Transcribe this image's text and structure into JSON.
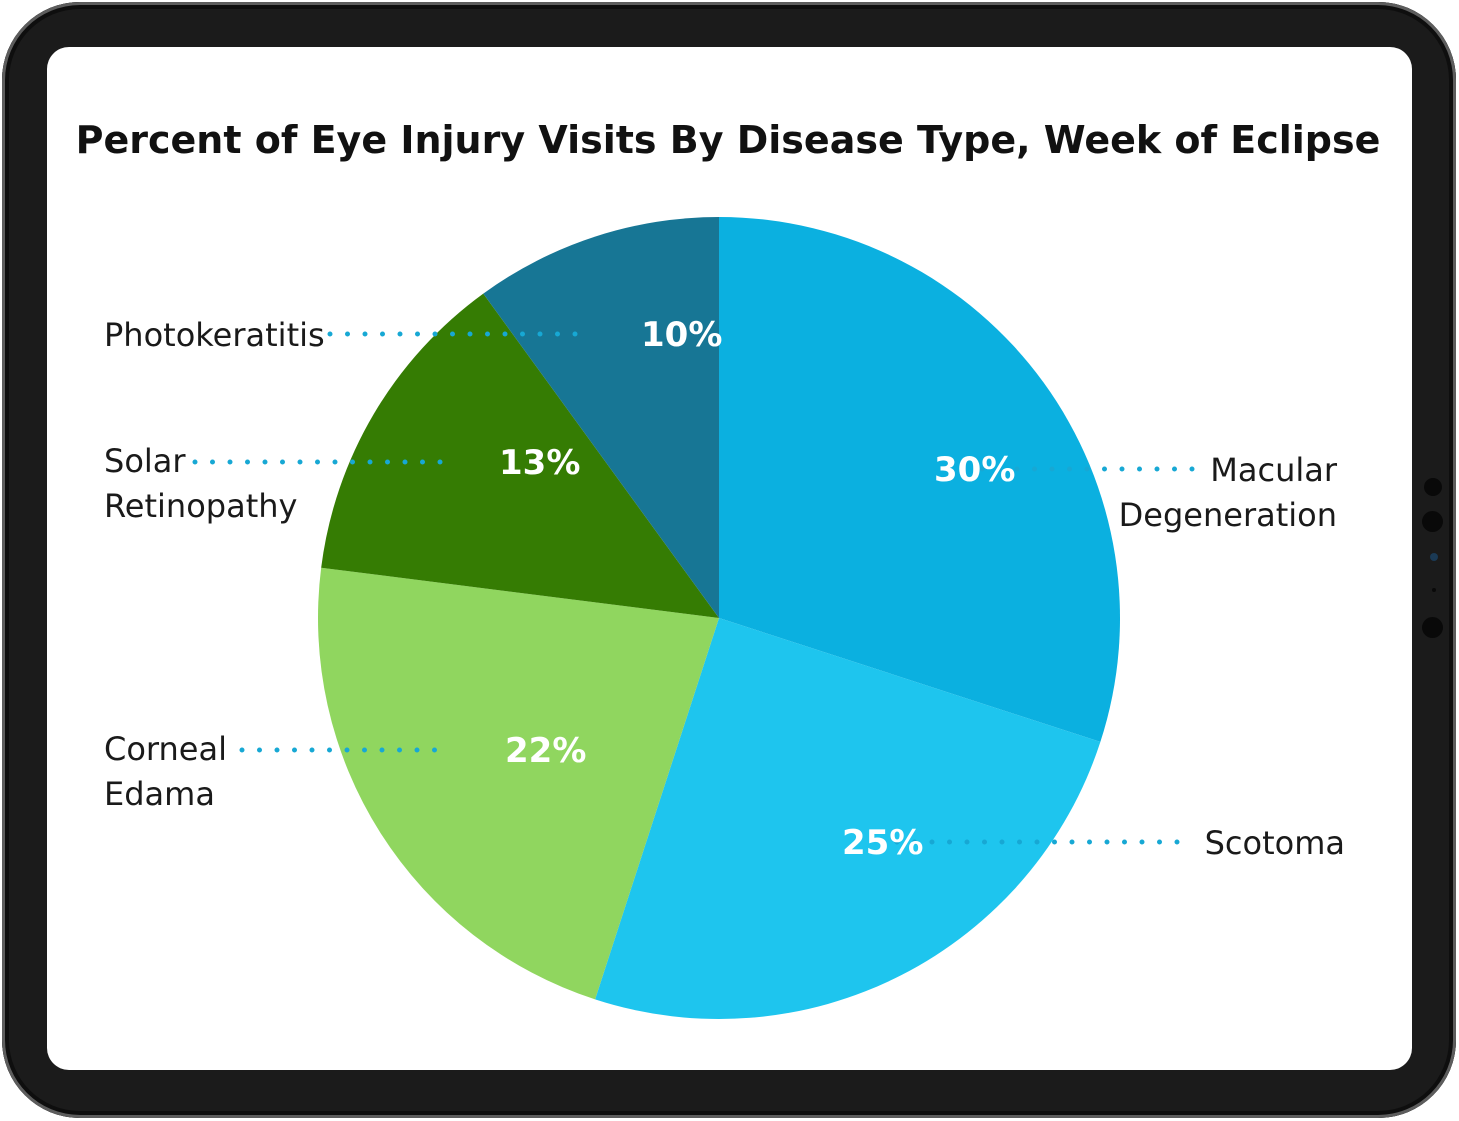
{
  "chart_data": {
    "type": "pie",
    "title": "Percent of Eye Injury Visits By Disease Type, Week of Eclipse",
    "unit": "%",
    "slices": [
      {
        "label": "Macular Degeneration",
        "lines": [
          "Macular",
          "Degeneration"
        ],
        "value": 30,
        "value_label": "30%",
        "color": "#0BB0E0"
      },
      {
        "label": "Scotoma",
        "lines": [
          "Scotoma"
        ],
        "value": 25,
        "value_label": "25%",
        "color": "#1EC5EE"
      },
      {
        "label": "Corneal Edama",
        "lines": [
          "Corneal",
          "Edama"
        ],
        "value": 22,
        "value_label": "22%",
        "color": "#90D65F"
      },
      {
        "label": "Solar Retinopathy",
        "lines": [
          "Solar",
          "Retinopathy"
        ],
        "value": 13,
        "value_label": "13%",
        "color": "#357C03"
      },
      {
        "label": "Photokeratitis",
        "lines": [
          "Photokeratitis"
        ],
        "value": 10,
        "value_label": "10%",
        "color": "#177695"
      }
    ],
    "leader_color": "#17A8D4",
    "legend": "none"
  }
}
